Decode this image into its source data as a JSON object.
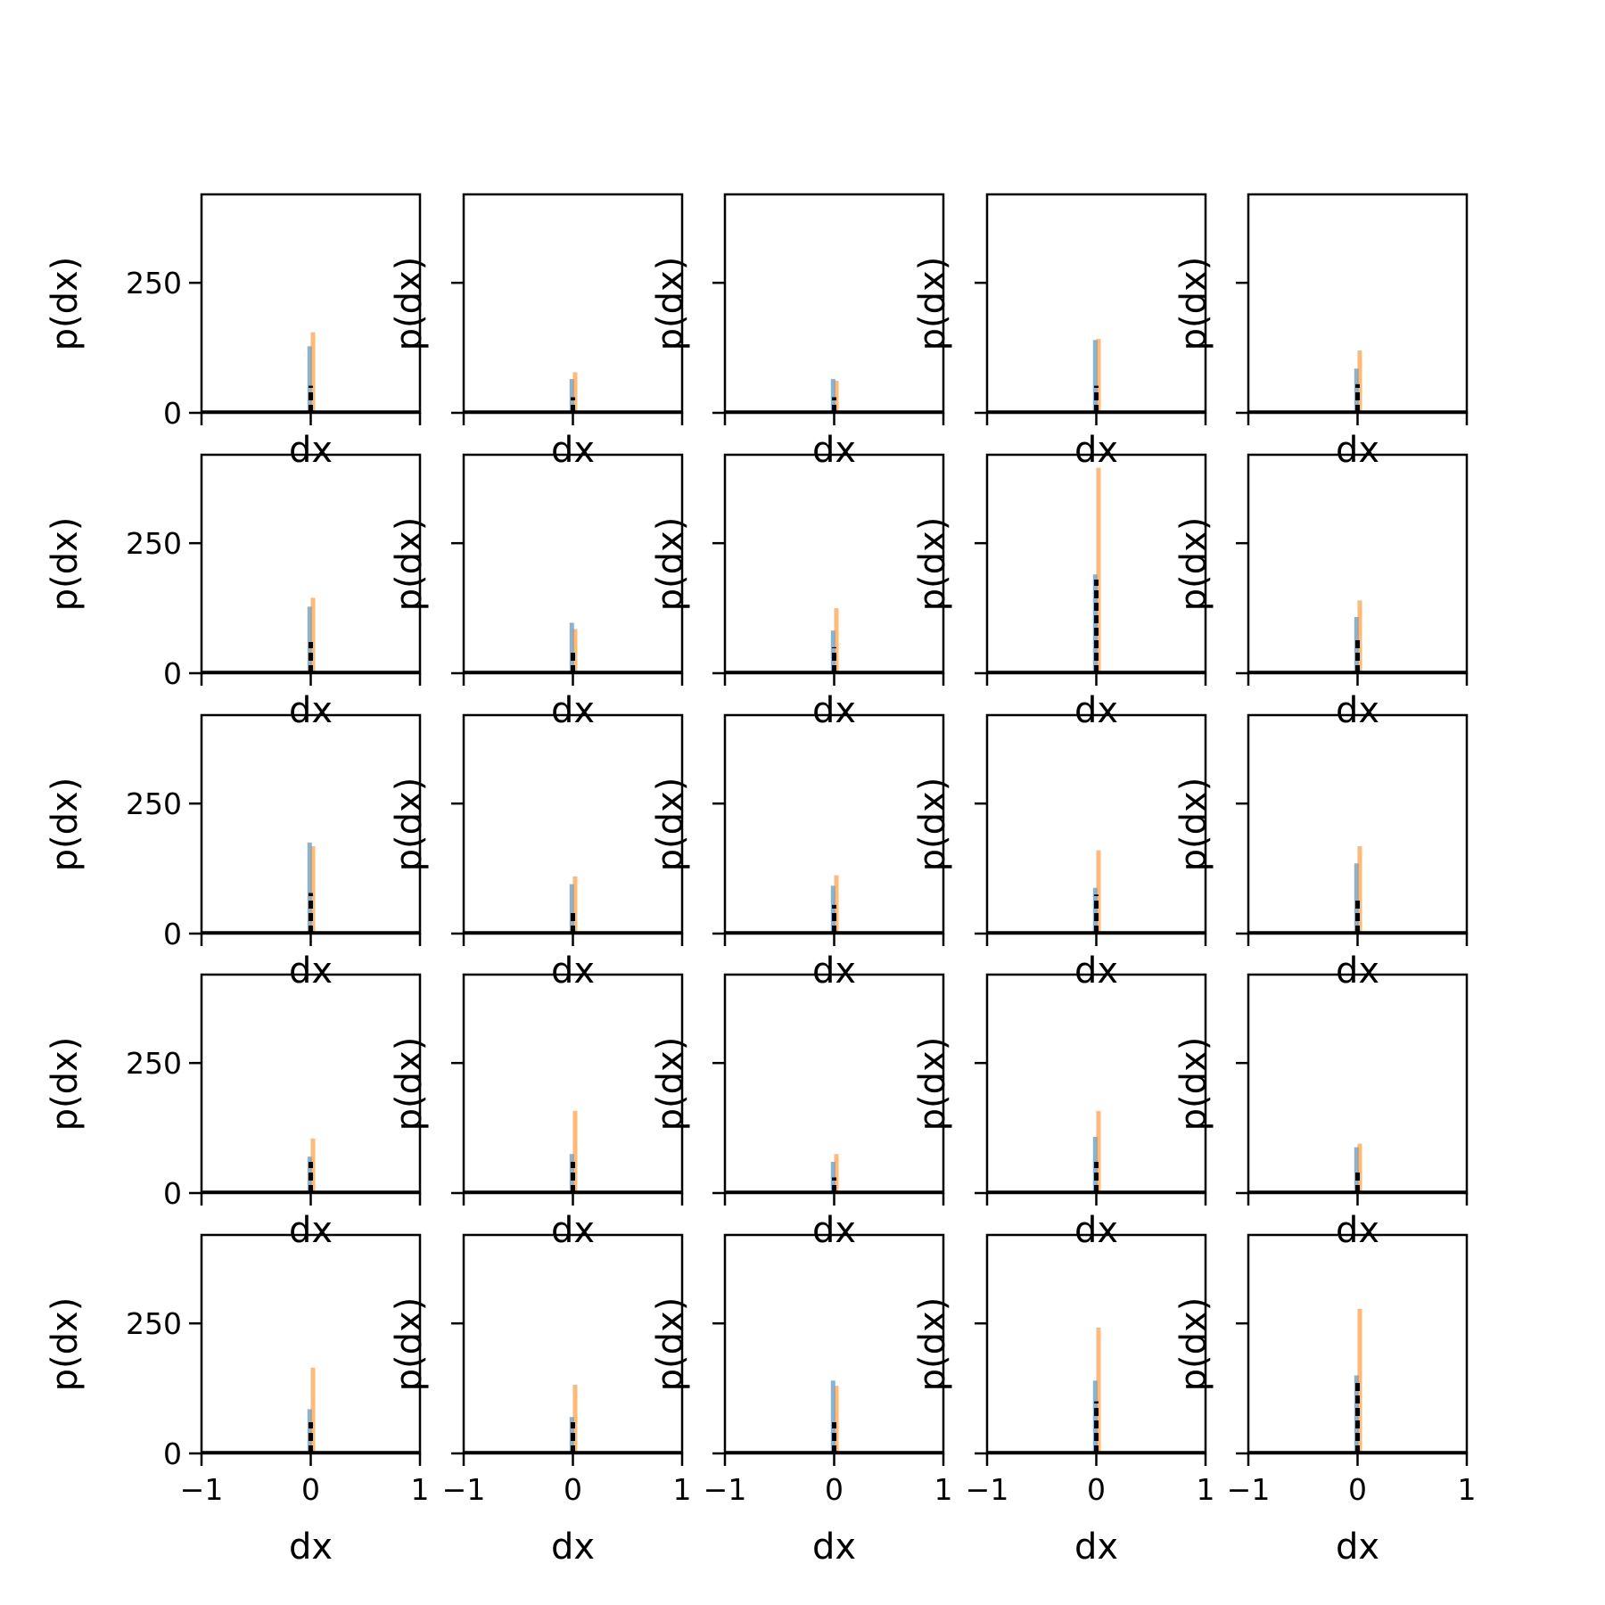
{
  "figure": {
    "rows": 5,
    "cols": 5,
    "xlabel": "dx",
    "ylabel": "p(dx)",
    "xlim": [
      -1,
      1
    ],
    "ylim": [
      0,
      420
    ],
    "xticks": [
      -1,
      0,
      1
    ],
    "xtick_labels": [
      "−1",
      "0",
      "1"
    ],
    "yticks": [
      0,
      250
    ],
    "ytick_labels": [
      "0",
      "250"
    ],
    "colors": {
      "blue": "#1f77b4",
      "orange": "#ff7f0e",
      "black": "#000000"
    }
  },
  "chart_data": [
    {
      "type": "bar",
      "row": 1,
      "col": 1,
      "xlim": [
        -1,
        1
      ],
      "ylim": [
        0,
        420
      ],
      "series": [
        {
          "color": "blue",
          "x": -0.01,
          "value": 128
        },
        {
          "color": "orange",
          "x": 0.02,
          "value": 155
        },
        {
          "color": "black",
          "x": 0.0,
          "value": 52
        }
      ]
    },
    {
      "type": "bar",
      "row": 1,
      "col": 2,
      "xlim": [
        -1,
        1
      ],
      "ylim": [
        0,
        420
      ],
      "series": [
        {
          "color": "blue",
          "x": -0.01,
          "value": 65
        },
        {
          "color": "orange",
          "x": 0.02,
          "value": 78
        },
        {
          "color": "black",
          "x": 0.0,
          "value": 30
        }
      ]
    },
    {
      "type": "bar",
      "row": 1,
      "col": 3,
      "xlim": [
        -1,
        1
      ],
      "ylim": [
        0,
        420
      ],
      "series": [
        {
          "color": "blue",
          "x": -0.01,
          "value": 65
        },
        {
          "color": "orange",
          "x": 0.02,
          "value": 62
        },
        {
          "color": "black",
          "x": 0.0,
          "value": 30
        }
      ]
    },
    {
      "type": "bar",
      "row": 1,
      "col": 4,
      "xlim": [
        -1,
        1
      ],
      "ylim": [
        0,
        420
      ],
      "series": [
        {
          "color": "blue",
          "x": -0.01,
          "value": 140
        },
        {
          "color": "orange",
          "x": 0.02,
          "value": 142
        },
        {
          "color": "black",
          "x": 0.0,
          "value": 52
        }
      ]
    },
    {
      "type": "bar",
      "row": 1,
      "col": 5,
      "xlim": [
        -1,
        1
      ],
      "ylim": [
        0,
        420
      ],
      "series": [
        {
          "color": "blue",
          "x": -0.01,
          "value": 85
        },
        {
          "color": "orange",
          "x": 0.02,
          "value": 120
        },
        {
          "color": "black",
          "x": 0.0,
          "value": 55
        }
      ]
    },
    {
      "type": "bar",
      "row": 2,
      "col": 1,
      "xlim": [
        -1,
        1
      ],
      "ylim": [
        0,
        420
      ],
      "series": [
        {
          "color": "blue",
          "x": -0.01,
          "value": 128
        },
        {
          "color": "orange",
          "x": 0.02,
          "value": 145
        },
        {
          "color": "black",
          "x": 0.0,
          "value": 60
        }
      ]
    },
    {
      "type": "bar",
      "row": 2,
      "col": 2,
      "xlim": [
        -1,
        1
      ],
      "ylim": [
        0,
        420
      ],
      "series": [
        {
          "color": "blue",
          "x": -0.01,
          "value": 97
        },
        {
          "color": "orange",
          "x": 0.02,
          "value": 85
        },
        {
          "color": "black",
          "x": 0.0,
          "value": 45
        }
      ]
    },
    {
      "type": "bar",
      "row": 2,
      "col": 3,
      "xlim": [
        -1,
        1
      ],
      "ylim": [
        0,
        420
      ],
      "series": [
        {
          "color": "blue",
          "x": -0.01,
          "value": 82
        },
        {
          "color": "orange",
          "x": 0.02,
          "value": 125
        },
        {
          "color": "black",
          "x": 0.0,
          "value": 50
        }
      ]
    },
    {
      "type": "bar",
      "row": 2,
      "col": 4,
      "xlim": [
        -1,
        1
      ],
      "ylim": [
        0,
        420
      ],
      "series": [
        {
          "color": "blue",
          "x": -0.01,
          "value": 190
        },
        {
          "color": "orange",
          "x": 0.02,
          "value": 395
        },
        {
          "color": "black",
          "x": 0.0,
          "value": 180
        }
      ]
    },
    {
      "type": "bar",
      "row": 2,
      "col": 5,
      "xlim": [
        -1,
        1
      ],
      "ylim": [
        0,
        420
      ],
      "series": [
        {
          "color": "blue",
          "x": -0.01,
          "value": 108
        },
        {
          "color": "orange",
          "x": 0.02,
          "value": 140
        },
        {
          "color": "black",
          "x": 0.0,
          "value": 68
        }
      ]
    },
    {
      "type": "bar",
      "row": 3,
      "col": 1,
      "xlim": [
        -1,
        1
      ],
      "ylim": [
        0,
        420
      ],
      "series": [
        {
          "color": "blue",
          "x": -0.01,
          "value": 175
        },
        {
          "color": "orange",
          "x": 0.02,
          "value": 168
        },
        {
          "color": "black",
          "x": 0.0,
          "value": 78
        }
      ]
    },
    {
      "type": "bar",
      "row": 3,
      "col": 2,
      "xlim": [
        -1,
        1
      ],
      "ylim": [
        0,
        420
      ],
      "series": [
        {
          "color": "blue",
          "x": -0.01,
          "value": 95
        },
        {
          "color": "orange",
          "x": 0.02,
          "value": 110
        },
        {
          "color": "black",
          "x": 0.0,
          "value": 45
        }
      ]
    },
    {
      "type": "bar",
      "row": 3,
      "col": 3,
      "xlim": [
        -1,
        1
      ],
      "ylim": [
        0,
        420
      ],
      "series": [
        {
          "color": "blue",
          "x": -0.01,
          "value": 92
        },
        {
          "color": "orange",
          "x": 0.02,
          "value": 112
        },
        {
          "color": "black",
          "x": 0.0,
          "value": 55
        }
      ]
    },
    {
      "type": "bar",
      "row": 3,
      "col": 4,
      "xlim": [
        -1,
        1
      ],
      "ylim": [
        0,
        420
      ],
      "series": [
        {
          "color": "blue",
          "x": -0.01,
          "value": 88
        },
        {
          "color": "orange",
          "x": 0.02,
          "value": 160
        },
        {
          "color": "black",
          "x": 0.0,
          "value": 75
        }
      ]
    },
    {
      "type": "bar",
      "row": 3,
      "col": 5,
      "xlim": [
        -1,
        1
      ],
      "ylim": [
        0,
        420
      ],
      "series": [
        {
          "color": "blue",
          "x": -0.01,
          "value": 135
        },
        {
          "color": "orange",
          "x": 0.02,
          "value": 168
        },
        {
          "color": "black",
          "x": 0.0,
          "value": 70
        }
      ]
    },
    {
      "type": "bar",
      "row": 4,
      "col": 1,
      "xlim": [
        -1,
        1
      ],
      "ylim": [
        0,
        420
      ],
      "series": [
        {
          "color": "blue",
          "x": -0.01,
          "value": 70
        },
        {
          "color": "orange",
          "x": 0.02,
          "value": 105
        },
        {
          "color": "black",
          "x": 0.0,
          "value": 60
        }
      ]
    },
    {
      "type": "bar",
      "row": 4,
      "col": 2,
      "xlim": [
        -1,
        1
      ],
      "ylim": [
        0,
        420
      ],
      "series": [
        {
          "color": "blue",
          "x": -0.01,
          "value": 75
        },
        {
          "color": "orange",
          "x": 0.02,
          "value": 158
        },
        {
          "color": "black",
          "x": 0.0,
          "value": 60
        }
      ]
    },
    {
      "type": "bar",
      "row": 4,
      "col": 3,
      "xlim": [
        -1,
        1
      ],
      "ylim": [
        0,
        420
      ],
      "series": [
        {
          "color": "blue",
          "x": -0.01,
          "value": 60
        },
        {
          "color": "orange",
          "x": 0.02,
          "value": 75
        },
        {
          "color": "black",
          "x": 0.0,
          "value": 30
        }
      ]
    },
    {
      "type": "bar",
      "row": 4,
      "col": 4,
      "xlim": [
        -1,
        1
      ],
      "ylim": [
        0,
        420
      ],
      "series": [
        {
          "color": "blue",
          "x": -0.01,
          "value": 108
        },
        {
          "color": "orange",
          "x": 0.02,
          "value": 158
        },
        {
          "color": "black",
          "x": 0.0,
          "value": 60
        }
      ]
    },
    {
      "type": "bar",
      "row": 4,
      "col": 5,
      "xlim": [
        -1,
        1
      ],
      "ylim": [
        0,
        420
      ],
      "series": [
        {
          "color": "blue",
          "x": -0.01,
          "value": 88
        },
        {
          "color": "orange",
          "x": 0.02,
          "value": 95
        },
        {
          "color": "black",
          "x": 0.0,
          "value": 40
        }
      ]
    },
    {
      "type": "bar",
      "row": 5,
      "col": 1,
      "xlim": [
        -1,
        1
      ],
      "ylim": [
        0,
        420
      ],
      "series": [
        {
          "color": "blue",
          "x": -0.01,
          "value": 85
        },
        {
          "color": "orange",
          "x": 0.02,
          "value": 165
        },
        {
          "color": "black",
          "x": 0.0,
          "value": 60
        }
      ]
    },
    {
      "type": "bar",
      "row": 5,
      "col": 2,
      "xlim": [
        -1,
        1
      ],
      "ylim": [
        0,
        420
      ],
      "series": [
        {
          "color": "blue",
          "x": -0.01,
          "value": 70
        },
        {
          "color": "orange",
          "x": 0.02,
          "value": 132
        },
        {
          "color": "black",
          "x": 0.0,
          "value": 60
        }
      ]
    },
    {
      "type": "bar",
      "row": 5,
      "col": 3,
      "xlim": [
        -1,
        1
      ],
      "ylim": [
        0,
        420
      ],
      "series": [
        {
          "color": "blue",
          "x": -0.01,
          "value": 140
        },
        {
          "color": "orange",
          "x": 0.02,
          "value": 130
        },
        {
          "color": "black",
          "x": 0.0,
          "value": 60
        }
      ]
    },
    {
      "type": "bar",
      "row": 5,
      "col": 4,
      "xlim": [
        -1,
        1
      ],
      "ylim": [
        0,
        420
      ],
      "series": [
        {
          "color": "blue",
          "x": -0.01,
          "value": 140
        },
        {
          "color": "orange",
          "x": 0.02,
          "value": 242
        },
        {
          "color": "black",
          "x": 0.0,
          "value": 100
        }
      ]
    },
    {
      "type": "bar",
      "row": 5,
      "col": 5,
      "xlim": [
        -1,
        1
      ],
      "ylim": [
        0,
        420
      ],
      "series": [
        {
          "color": "blue",
          "x": -0.01,
          "value": 150
        },
        {
          "color": "orange",
          "x": 0.02,
          "value": 278
        },
        {
          "color": "black",
          "x": 0.0,
          "value": 140
        }
      ]
    }
  ]
}
